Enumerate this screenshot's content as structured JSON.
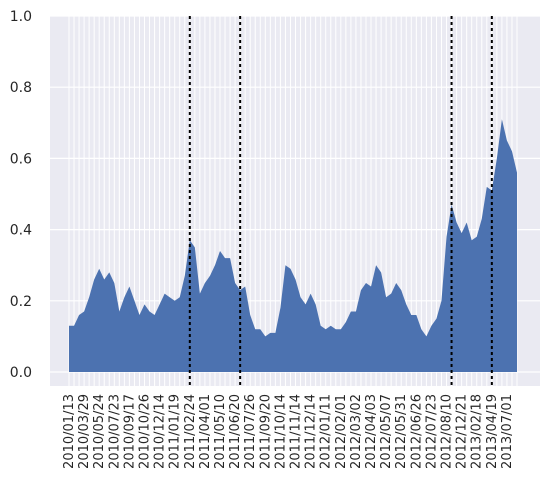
{
  "chart_data": {
    "type": "area",
    "title": "",
    "xlabel": "",
    "ylabel": "",
    "ylim": [
      0,
      1.0
    ],
    "yticks": [
      0.0,
      0.2,
      0.4,
      0.6,
      0.8,
      1.0
    ],
    "ytick_labels": [
      "0.0",
      "0.2",
      "0.4",
      "0.6",
      "0.8",
      "1.0"
    ],
    "grid": true,
    "x_labels": [
      "2010/01/13",
      "2010/03/29",
      "2010/05/24",
      "2010/07/23",
      "2010/09/17",
      "2010/10/26",
      "2010/12/14",
      "2011/01/19",
      "2011/02/24",
      "2011/04/01",
      "2011/05/10",
      "2011/06/20",
      "2011/07/26",
      "2011/09/20",
      "2011/10/14",
      "2011/11/14",
      "2011/12/14",
      "2012/01/11",
      "2012/02/01",
      "2012/03/02",
      "2012/04/03",
      "2012/05/07",
      "2012/05/31",
      "2012/06/26",
      "2012/07/23",
      "2012/08/10",
      "2012/12/21",
      "2013/02/18",
      "2013/04/19",
      "2013/07/01"
    ],
    "values": [
      0.13,
      0.13,
      0.16,
      0.17,
      0.21,
      0.26,
      0.29,
      0.26,
      0.28,
      0.25,
      0.17,
      0.21,
      0.24,
      0.2,
      0.16,
      0.19,
      0.17,
      0.16,
      0.19,
      0.22,
      0.21,
      0.2,
      0.21,
      0.27,
      0.37,
      0.35,
      0.22,
      0.25,
      0.27,
      0.3,
      0.34,
      0.32,
      0.32,
      0.25,
      0.23,
      0.24,
      0.16,
      0.12,
      0.12,
      0.1,
      0.11,
      0.11,
      0.18,
      0.3,
      0.29,
      0.26,
      0.21,
      0.19,
      0.22,
      0.19,
      0.13,
      0.12,
      0.13,
      0.12,
      0.12,
      0.14,
      0.17,
      0.17,
      0.23,
      0.25,
      0.24,
      0.3,
      0.28,
      0.21,
      0.22,
      0.25,
      0.23,
      0.19,
      0.16,
      0.16,
      0.12,
      0.1,
      0.13,
      0.15,
      0.2,
      0.38,
      0.47,
      0.42,
      0.39,
      0.42,
      0.37,
      0.38,
      0.43,
      0.52,
      0.51,
      0.6,
      0.71,
      0.65,
      0.62,
      0.56
    ],
    "vlines_at_index": [
      24,
      34,
      76,
      84
    ],
    "vline_style": "dotted",
    "colors": {
      "fill": "#4c72b0",
      "background": "#eaeaf2",
      "grid": "#ffffff",
      "vline": "#000000"
    }
  }
}
